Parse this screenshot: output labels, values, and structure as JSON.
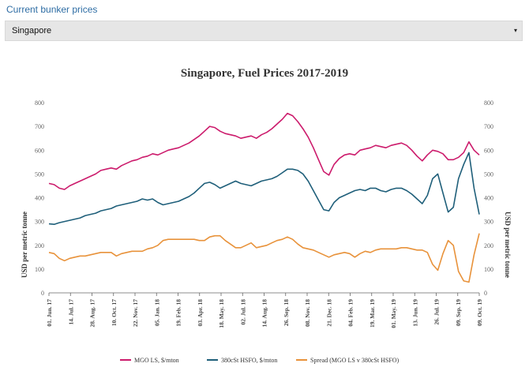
{
  "header": {
    "link_text": "Current bunker prices"
  },
  "port_select": {
    "value": "Singapore",
    "caret": "▾"
  },
  "chart_data": {
    "type": "line",
    "title": "Singapore, Fuel Prices 2017-2019",
    "ylabel": "USD per metric tonne",
    "ylim": [
      0,
      800
    ],
    "yticks": [
      0,
      100,
      200,
      300,
      400,
      500,
      600,
      700,
      800
    ],
    "grid": false,
    "legend_position": "bottom",
    "x_tick_labels": [
      "01. Jun. 17",
      "14. Jul. 17",
      "28. Aug. 17",
      "10. Oct. 17",
      "22. Nov. 17",
      "05. Jan. 18",
      "19. Feb. 18",
      "03. Apr. 18",
      "18. May. 18",
      "02. Jul. 18",
      "14. Aug. 18",
      "26. Sep. 18",
      "08. Nov. 18",
      "21. Dec. 18",
      "04. Feb. 19",
      "19. Mar. 19",
      "01. May. 19",
      "13. Jun. 19",
      "26. Jul. 19",
      "09. Sep. 19",
      "09. Oct. 19"
    ],
    "series": [
      {
        "name": "MGO LS, $/mton",
        "color": "#cc1b6c",
        "values": [
          460,
          455,
          440,
          435,
          450,
          460,
          470,
          480,
          490,
          500,
          515,
          520,
          525,
          520,
          535,
          545,
          555,
          560,
          570,
          575,
          585,
          580,
          590,
          600,
          605,
          610,
          620,
          630,
          645,
          660,
          680,
          700,
          695,
          680,
          670,
          665,
          660,
          650,
          655,
          660,
          650,
          665,
          675,
          690,
          710,
          730,
          755,
          745,
          720,
          690,
          655,
          610,
          560,
          510,
          495,
          540,
          565,
          580,
          585,
          580,
          600,
          605,
          610,
          620,
          615,
          610,
          620,
          625,
          630,
          620,
          600,
          575,
          555,
          580,
          600,
          595,
          585,
          560,
          560,
          570,
          590,
          635,
          600,
          580
        ],
        "labels_at_ends": false
      },
      {
        "name": "380cSt HSFO, $/mton",
        "color": "#1f5f7a",
        "values": [
          290,
          288,
          295,
          300,
          305,
          310,
          315,
          325,
          330,
          335,
          345,
          350,
          355,
          365,
          370,
          375,
          380,
          385,
          395,
          390,
          395,
          380,
          370,
          375,
          380,
          385,
          395,
          405,
          420,
          440,
          460,
          465,
          455,
          440,
          450,
          460,
          470,
          460,
          455,
          450,
          460,
          470,
          475,
          480,
          490,
          505,
          520,
          520,
          515,
          500,
          470,
          430,
          390,
          350,
          345,
          380,
          400,
          410,
          420,
          430,
          435,
          430,
          440,
          440,
          430,
          425,
          435,
          440,
          440,
          430,
          415,
          395,
          375,
          410,
          480,
          500,
          420,
          340,
          360,
          480,
          540,
          590,
          440,
          330
        ],
        "labels_at_ends": false
      },
      {
        "name": "Spread (MGO LS v 380cSt HSFO)",
        "color": "#e8923a",
        "values": [
          170,
          165,
          145,
          135,
          145,
          150,
          155,
          155,
          160,
          165,
          170,
          170,
          170,
          155,
          165,
          170,
          175,
          175,
          175,
          185,
          190,
          200,
          220,
          225,
          225,
          225,
          225,
          225,
          225,
          220,
          220,
          235,
          240,
          240,
          220,
          205,
          190,
          190,
          200,
          210,
          190,
          195,
          200,
          210,
          220,
          225,
          235,
          225,
          205,
          190,
          185,
          180,
          170,
          160,
          150,
          160,
          165,
          170,
          165,
          150,
          165,
          175,
          170,
          180,
          185,
          185,
          185,
          185,
          190,
          190,
          185,
          180,
          180,
          170,
          120,
          95,
          165,
          220,
          200,
          90,
          50,
          45,
          160,
          250
        ],
        "labels_at_ends": false
      }
    ]
  }
}
